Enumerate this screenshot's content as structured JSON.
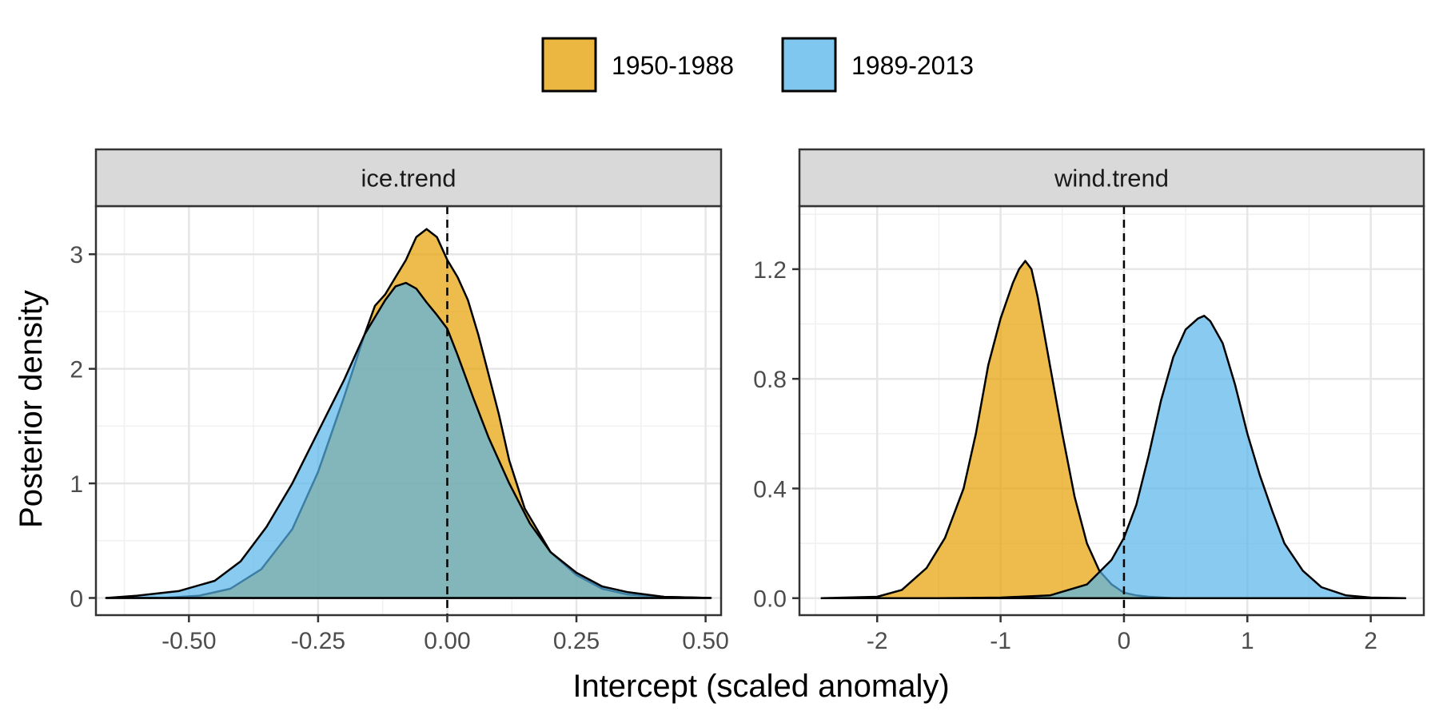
{
  "chart_data": {
    "type": "area",
    "xlabel": "Intercept (scaled anomaly)",
    "ylabel": "Posterior density",
    "legend": {
      "position": "top",
      "entries": [
        {
          "name": "1950-1988",
          "color": "#E69F00"
        },
        {
          "name": "1989-2013",
          "color": "#56B4E9"
        }
      ]
    },
    "fill_opacity": 0.7,
    "reference_line_x": 0,
    "panels": [
      {
        "strip": "ice.trend",
        "xlim": [
          -0.68,
          0.53
        ],
        "ylim": [
          -0.15,
          3.42
        ],
        "x_ticks": [
          -0.5,
          -0.25,
          0,
          0.25,
          0.5
        ],
        "x_tick_labels": [
          "-0.50",
          "-0.25",
          "0.00",
          "0.25",
          "0.50"
        ],
        "y_ticks": [
          0,
          1,
          2,
          3
        ],
        "y_tick_labels": [
          "0",
          "1",
          "2",
          "3"
        ],
        "series": [
          {
            "name": "1950-1988",
            "x": [
              -0.66,
              -0.55,
              -0.48,
              -0.42,
              -0.36,
              -0.3,
              -0.25,
              -0.2,
              -0.16,
              -0.14,
              -0.12,
              -0.1,
              -0.08,
              -0.06,
              -0.04,
              -0.02,
              0.0,
              0.02,
              0.04,
              0.06,
              0.08,
              0.1,
              0.12,
              0.15,
              0.2,
              0.25,
              0.3,
              0.35,
              0.42,
              0.51
            ],
            "y": [
              0.0,
              0.0,
              0.02,
              0.08,
              0.25,
              0.6,
              1.1,
              1.75,
              2.3,
              2.55,
              2.65,
              2.8,
              2.95,
              3.15,
              3.22,
              3.15,
              2.95,
              2.8,
              2.6,
              2.3,
              1.95,
              1.6,
              1.2,
              0.78,
              0.4,
              0.2,
              0.08,
              0.03,
              0.01,
              0.0
            ]
          },
          {
            "name": "1989-2013",
            "x": [
              -0.66,
              -0.6,
              -0.52,
              -0.45,
              -0.4,
              -0.35,
              -0.3,
              -0.25,
              -0.2,
              -0.16,
              -0.12,
              -0.1,
              -0.08,
              -0.06,
              -0.04,
              -0.02,
              0.0,
              0.02,
              0.05,
              0.08,
              0.12,
              0.16,
              0.2,
              0.25,
              0.3,
              0.35,
              0.42,
              0.51
            ],
            "y": [
              0.0,
              0.02,
              0.06,
              0.15,
              0.32,
              0.62,
              1.0,
              1.45,
              1.9,
              2.3,
              2.6,
              2.72,
              2.75,
              2.7,
              2.58,
              2.47,
              2.35,
              2.12,
              1.75,
              1.4,
              1.0,
              0.65,
              0.4,
              0.22,
              0.1,
              0.05,
              0.01,
              0.0
            ]
          }
        ]
      },
      {
        "strip": "wind.trend",
        "xlim": [
          -2.63,
          2.43
        ],
        "ylim": [
          -0.062,
          1.43
        ],
        "x_ticks": [
          -2,
          -1,
          0,
          1,
          2
        ],
        "x_tick_labels": [
          "-2",
          "-1",
          "0",
          "1",
          "2"
        ],
        "y_ticks": [
          0,
          0.4,
          0.8,
          1.2
        ],
        "y_tick_labels": [
          "0.0",
          "0.4",
          "0.8",
          "1.2"
        ],
        "series": [
          {
            "name": "1950-1988",
            "x": [
              -2.45,
              -2.0,
              -1.8,
              -1.6,
              -1.45,
              -1.3,
              -1.2,
              -1.1,
              -1.0,
              -0.9,
              -0.85,
              -0.8,
              -0.75,
              -0.7,
              -0.6,
              -0.5,
              -0.4,
              -0.3,
              -0.2,
              -0.1,
              0.0,
              0.1,
              0.2,
              0.4,
              0.6,
              1.0,
              1.5,
              2.28
            ],
            "y": [
              0.0,
              0.005,
              0.03,
              0.11,
              0.22,
              0.4,
              0.6,
              0.85,
              1.02,
              1.15,
              1.2,
              1.23,
              1.2,
              1.1,
              0.85,
              0.6,
              0.37,
              0.2,
              0.1,
              0.05,
              0.02,
              0.01,
              0.005,
              0.0,
              0.0,
              0.0,
              0.0,
              0.0
            ]
          },
          {
            "name": "1989-2013",
            "x": [
              -2.45,
              -1.5,
              -1.0,
              -0.6,
              -0.3,
              -0.1,
              0.0,
              0.1,
              0.2,
              0.3,
              0.4,
              0.5,
              0.6,
              0.65,
              0.7,
              0.8,
              0.9,
              1.0,
              1.1,
              1.2,
              1.3,
              1.45,
              1.6,
              1.8,
              2.0,
              2.28
            ],
            "y": [
              0.0,
              0.0,
              0.002,
              0.01,
              0.05,
              0.14,
              0.22,
              0.34,
              0.52,
              0.72,
              0.88,
              0.98,
              1.02,
              1.03,
              1.01,
              0.93,
              0.78,
              0.6,
              0.45,
              0.32,
              0.2,
              0.1,
              0.04,
              0.01,
              0.002,
              0.0
            ]
          }
        ]
      }
    ]
  }
}
